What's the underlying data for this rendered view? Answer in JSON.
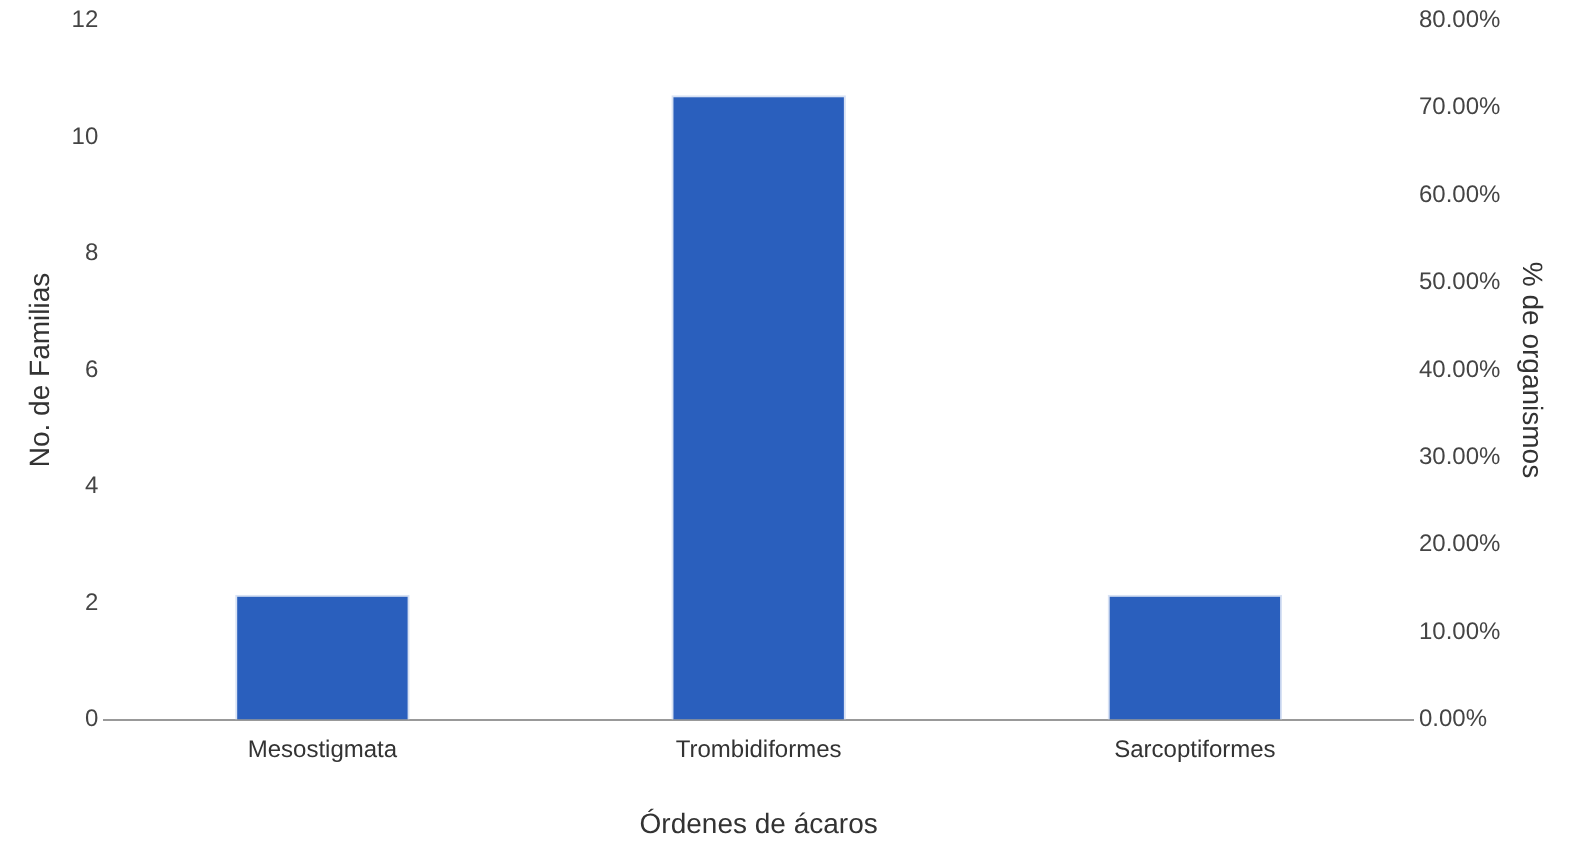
{
  "chart_data": {
    "type": "bar",
    "xlabel": "Órdenes de ácaros",
    "ylabel": "No. de Familias",
    "y2label": "% de organismos",
    "categories": [
      "Mesostigmata",
      "Trombidiformes",
      "Sarcoptiformes"
    ],
    "series": [
      {
        "color": "#2a5fbd",
        "axis": "y2",
        "values": [
          14.29,
          71.43,
          14.29
        ]
      }
    ],
    "ylim": [
      0,
      12
    ],
    "yticks": [
      0,
      2,
      4,
      6,
      8,
      10,
      12
    ],
    "y2lim": [
      0,
      80
    ],
    "y2ticks": [
      {
        "value": 0,
        "label": "0.00%"
      },
      {
        "value": 10,
        "label": "10.00%"
      },
      {
        "value": 20,
        "label": "20.00%"
      },
      {
        "value": 30,
        "label": "30.00%"
      },
      {
        "value": 40,
        "label": "40.00%"
      },
      {
        "value": 50,
        "label": "50.00%"
      },
      {
        "value": 60,
        "label": "60.00%"
      },
      {
        "value": 70,
        "label": "70.00%"
      },
      {
        "value": 80,
        "label": "80.00%"
      }
    ],
    "grid": false,
    "legend": false
  }
}
